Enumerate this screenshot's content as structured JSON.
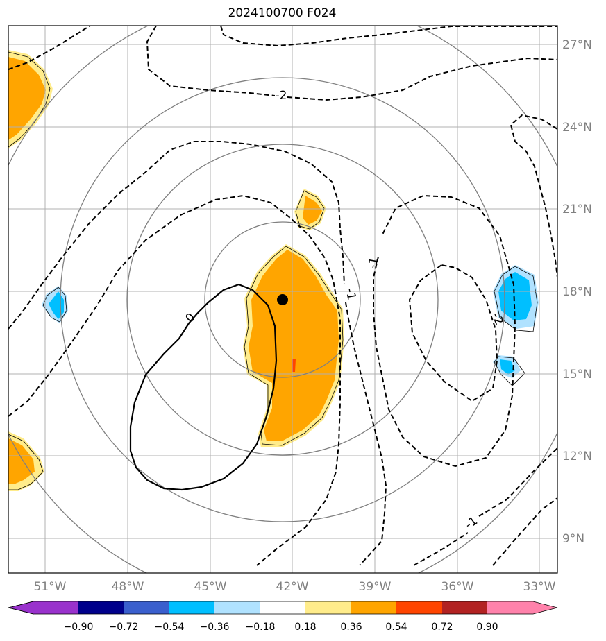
{
  "title": "2024100700 F024",
  "map": {
    "lon_range": [
      -52,
      -32.7
    ],
    "lat_range": [
      7.7,
      27.7
    ],
    "lon_ticks": [
      "51°W",
      "48°W",
      "45°W",
      "42°W",
      "39°W",
      "36°W",
      "33°W"
    ],
    "lat_ticks": [
      "27°N",
      "24°N",
      "21°N",
      "18°N",
      "15°N",
      "12°N",
      "9°N"
    ],
    "grid": true,
    "storm_center_marker": "black-dot",
    "range_rings": 4,
    "contour_labels": [
      "-2",
      "-1",
      "-2",
      "-1",
      "0",
      "-1"
    ]
  },
  "colorbar": {
    "ticks": [
      "−0.90",
      "−0.72",
      "−0.54",
      "−0.36",
      "−0.18",
      "0.18",
      "0.36",
      "0.54",
      "0.72",
      "0.90"
    ],
    "colors": [
      "#9932cc",
      "#00008b",
      "#3a5fcd",
      "#00bfff",
      "#b0e2ff",
      "#ffffff",
      "#ffec8b",
      "#ffa500",
      "#ff4500",
      "#b22222",
      "#ff82ab"
    ]
  }
}
